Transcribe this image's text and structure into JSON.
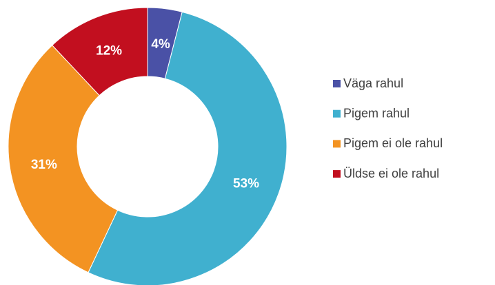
{
  "chart_data": {
    "type": "donut",
    "categories": [
      "Väga rahul",
      "Pigem rahul",
      "Pigem ei ole rahul",
      "Üldse ei ole rahul"
    ],
    "values": [
      4,
      53,
      31,
      12
    ],
    "value_labels": [
      "4%",
      "53%",
      "31%",
      "12%"
    ],
    "colors": [
      "#4a51a6",
      "#40b0cf",
      "#f39322",
      "#c20f1f"
    ],
    "legend": "right"
  }
}
